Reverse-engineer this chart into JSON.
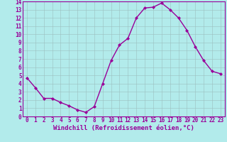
{
  "x": [
    0,
    1,
    2,
    3,
    4,
    5,
    6,
    7,
    8,
    9,
    10,
    11,
    12,
    13,
    14,
    15,
    16,
    17,
    18,
    19,
    20,
    21,
    22,
    23
  ],
  "y": [
    4.7,
    3.5,
    2.2,
    2.2,
    1.7,
    1.3,
    0.8,
    0.5,
    1.2,
    4.0,
    6.8,
    8.7,
    9.5,
    12.0,
    13.2,
    13.3,
    13.8,
    13.0,
    12.0,
    10.5,
    8.5,
    6.8,
    5.5,
    5.2
  ],
  "line_color": "#990099",
  "marker": "D",
  "marker_size": 2.0,
  "bg_color": "#b2ebeb",
  "grid_color": "#9bbfbf",
  "xlabel": "Windchill (Refroidissement éolien,°C)",
  "xlabel_color": "#990099",
  "xlim": [
    -0.5,
    23.5
  ],
  "ylim": [
    0,
    14
  ],
  "xticks": [
    0,
    1,
    2,
    3,
    4,
    5,
    6,
    7,
    8,
    9,
    10,
    11,
    12,
    13,
    14,
    15,
    16,
    17,
    18,
    19,
    20,
    21,
    22,
    23
  ],
  "yticks": [
    0,
    1,
    2,
    3,
    4,
    5,
    6,
    7,
    8,
    9,
    10,
    11,
    12,
    13,
    14
  ],
  "tick_color": "#990099",
  "tick_fontsize": 5.5,
  "xlabel_fontsize": 6.5,
  "spine_color": "#990099",
  "linewidth": 1.0
}
